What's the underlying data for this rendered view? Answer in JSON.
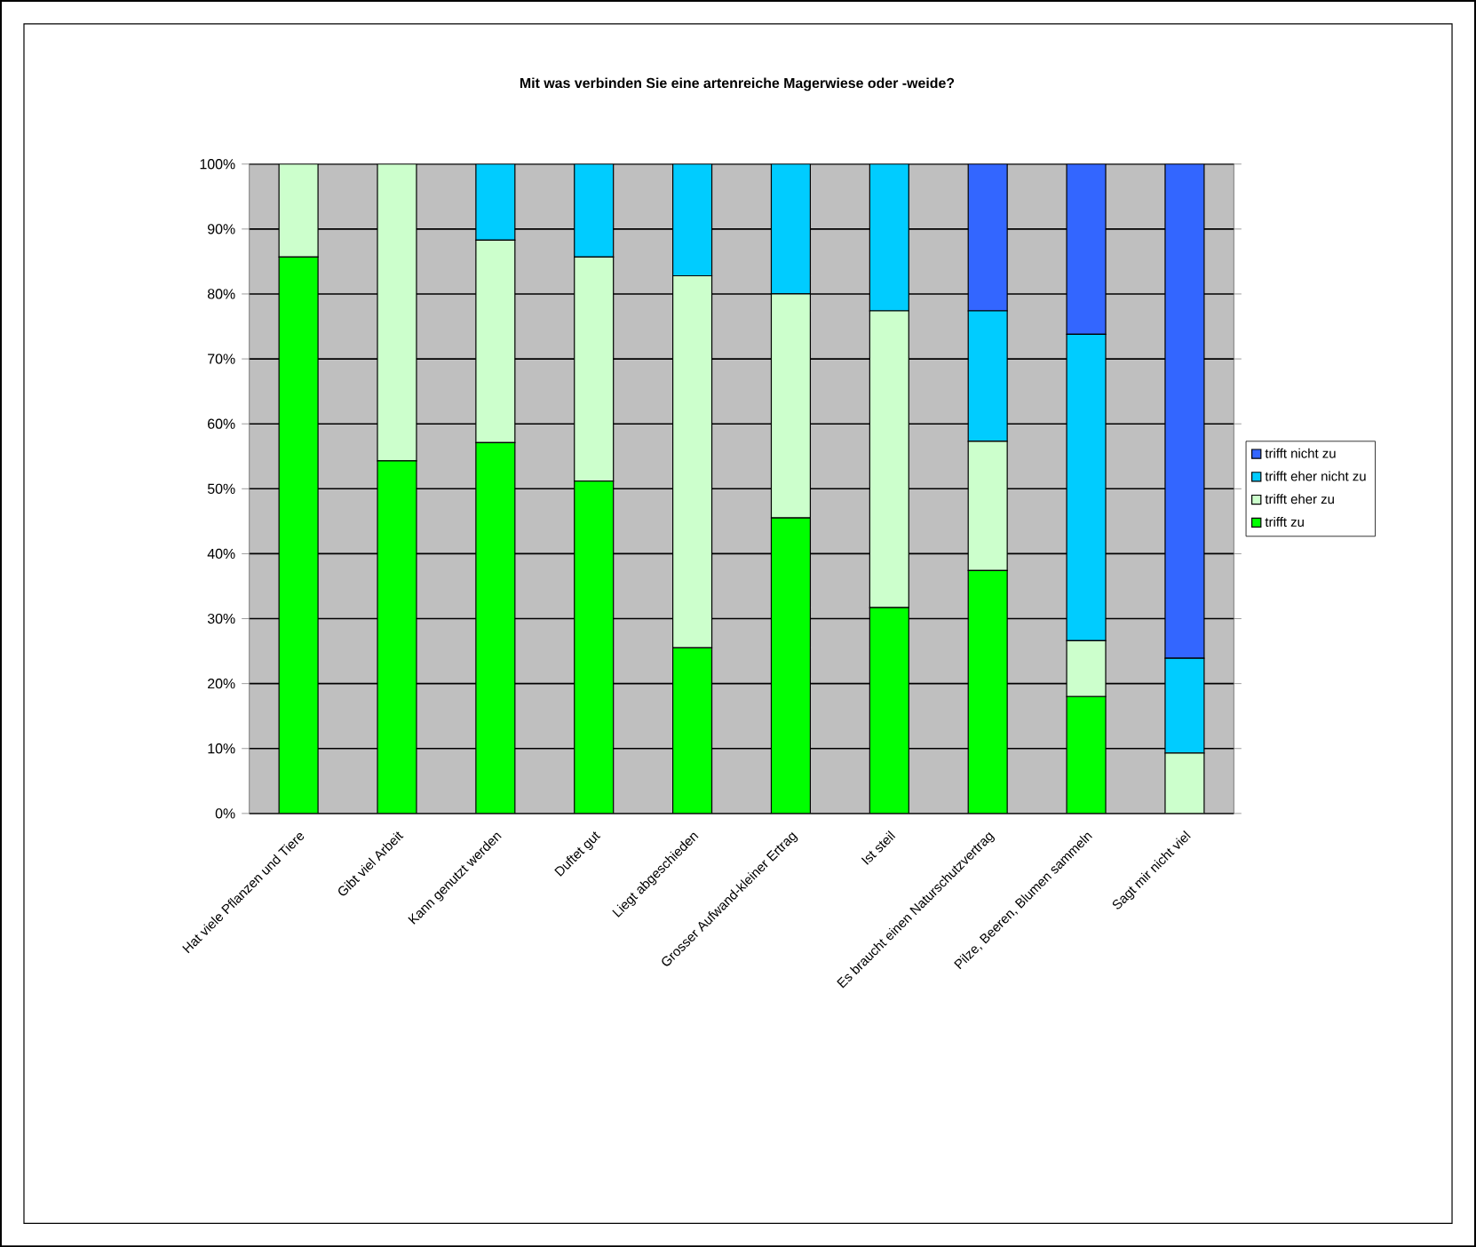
{
  "chart_data": {
    "type": "bar",
    "stacked": true,
    "title": "Mit was verbinden Sie eine artenreiche Magerwiese oder -weide?",
    "categories": [
      "Hat viele Pflanzen und Tiere",
      "Gibt viel Arbeit",
      "Kann genutzt werden",
      "Duftet gut",
      "Liegt abgeschieden",
      "Grosser Aufwand-kleiner Ertrag",
      "Ist steil",
      "Es braucht einen Naturschutzvertrag",
      "Pilze, Beeren, Blumen sammeln",
      "Sagt mir nicht viel"
    ],
    "series": [
      {
        "name": "trifft zu",
        "color": "#00ff00",
        "values": [
          85.7,
          54.3,
          57.1,
          51.2,
          25.5,
          45.5,
          31.7,
          37.4,
          18.0,
          0
        ]
      },
      {
        "name": "trifft eher zu",
        "color": "#ccffcc",
        "values": [
          14.3,
          45.7,
          31.2,
          34.5,
          57.3,
          34.5,
          45.7,
          19.9,
          8.6,
          9.3
        ]
      },
      {
        "name": "trifft eher nicht zu",
        "color": "#00ccff",
        "values": [
          0,
          0,
          11.7,
          14.3,
          17.2,
          20.0,
          22.6,
          20.1,
          47.2,
          14.6
        ]
      },
      {
        "name": "trifft nicht zu",
        "color": "#3366ff",
        "values": [
          0,
          0,
          0,
          0,
          0,
          0,
          0,
          22.6,
          26.2,
          76.1
        ]
      }
    ],
    "ylim": [
      0,
      100
    ],
    "yticks": [
      {
        "value": 0,
        "label": "0%"
      },
      {
        "value": 10,
        "label": "10%"
      },
      {
        "value": 20,
        "label": "20%"
      },
      {
        "value": 30,
        "label": "30%"
      },
      {
        "value": 40,
        "label": "40%"
      },
      {
        "value": 50,
        "label": "50%"
      },
      {
        "value": 60,
        "label": "60%"
      },
      {
        "value": 70,
        "label": "70%"
      },
      {
        "value": 80,
        "label": "80%"
      },
      {
        "value": 90,
        "label": "90%"
      },
      {
        "value": 100,
        "label": "100%"
      }
    ],
    "grid": "y",
    "legend": "right"
  }
}
